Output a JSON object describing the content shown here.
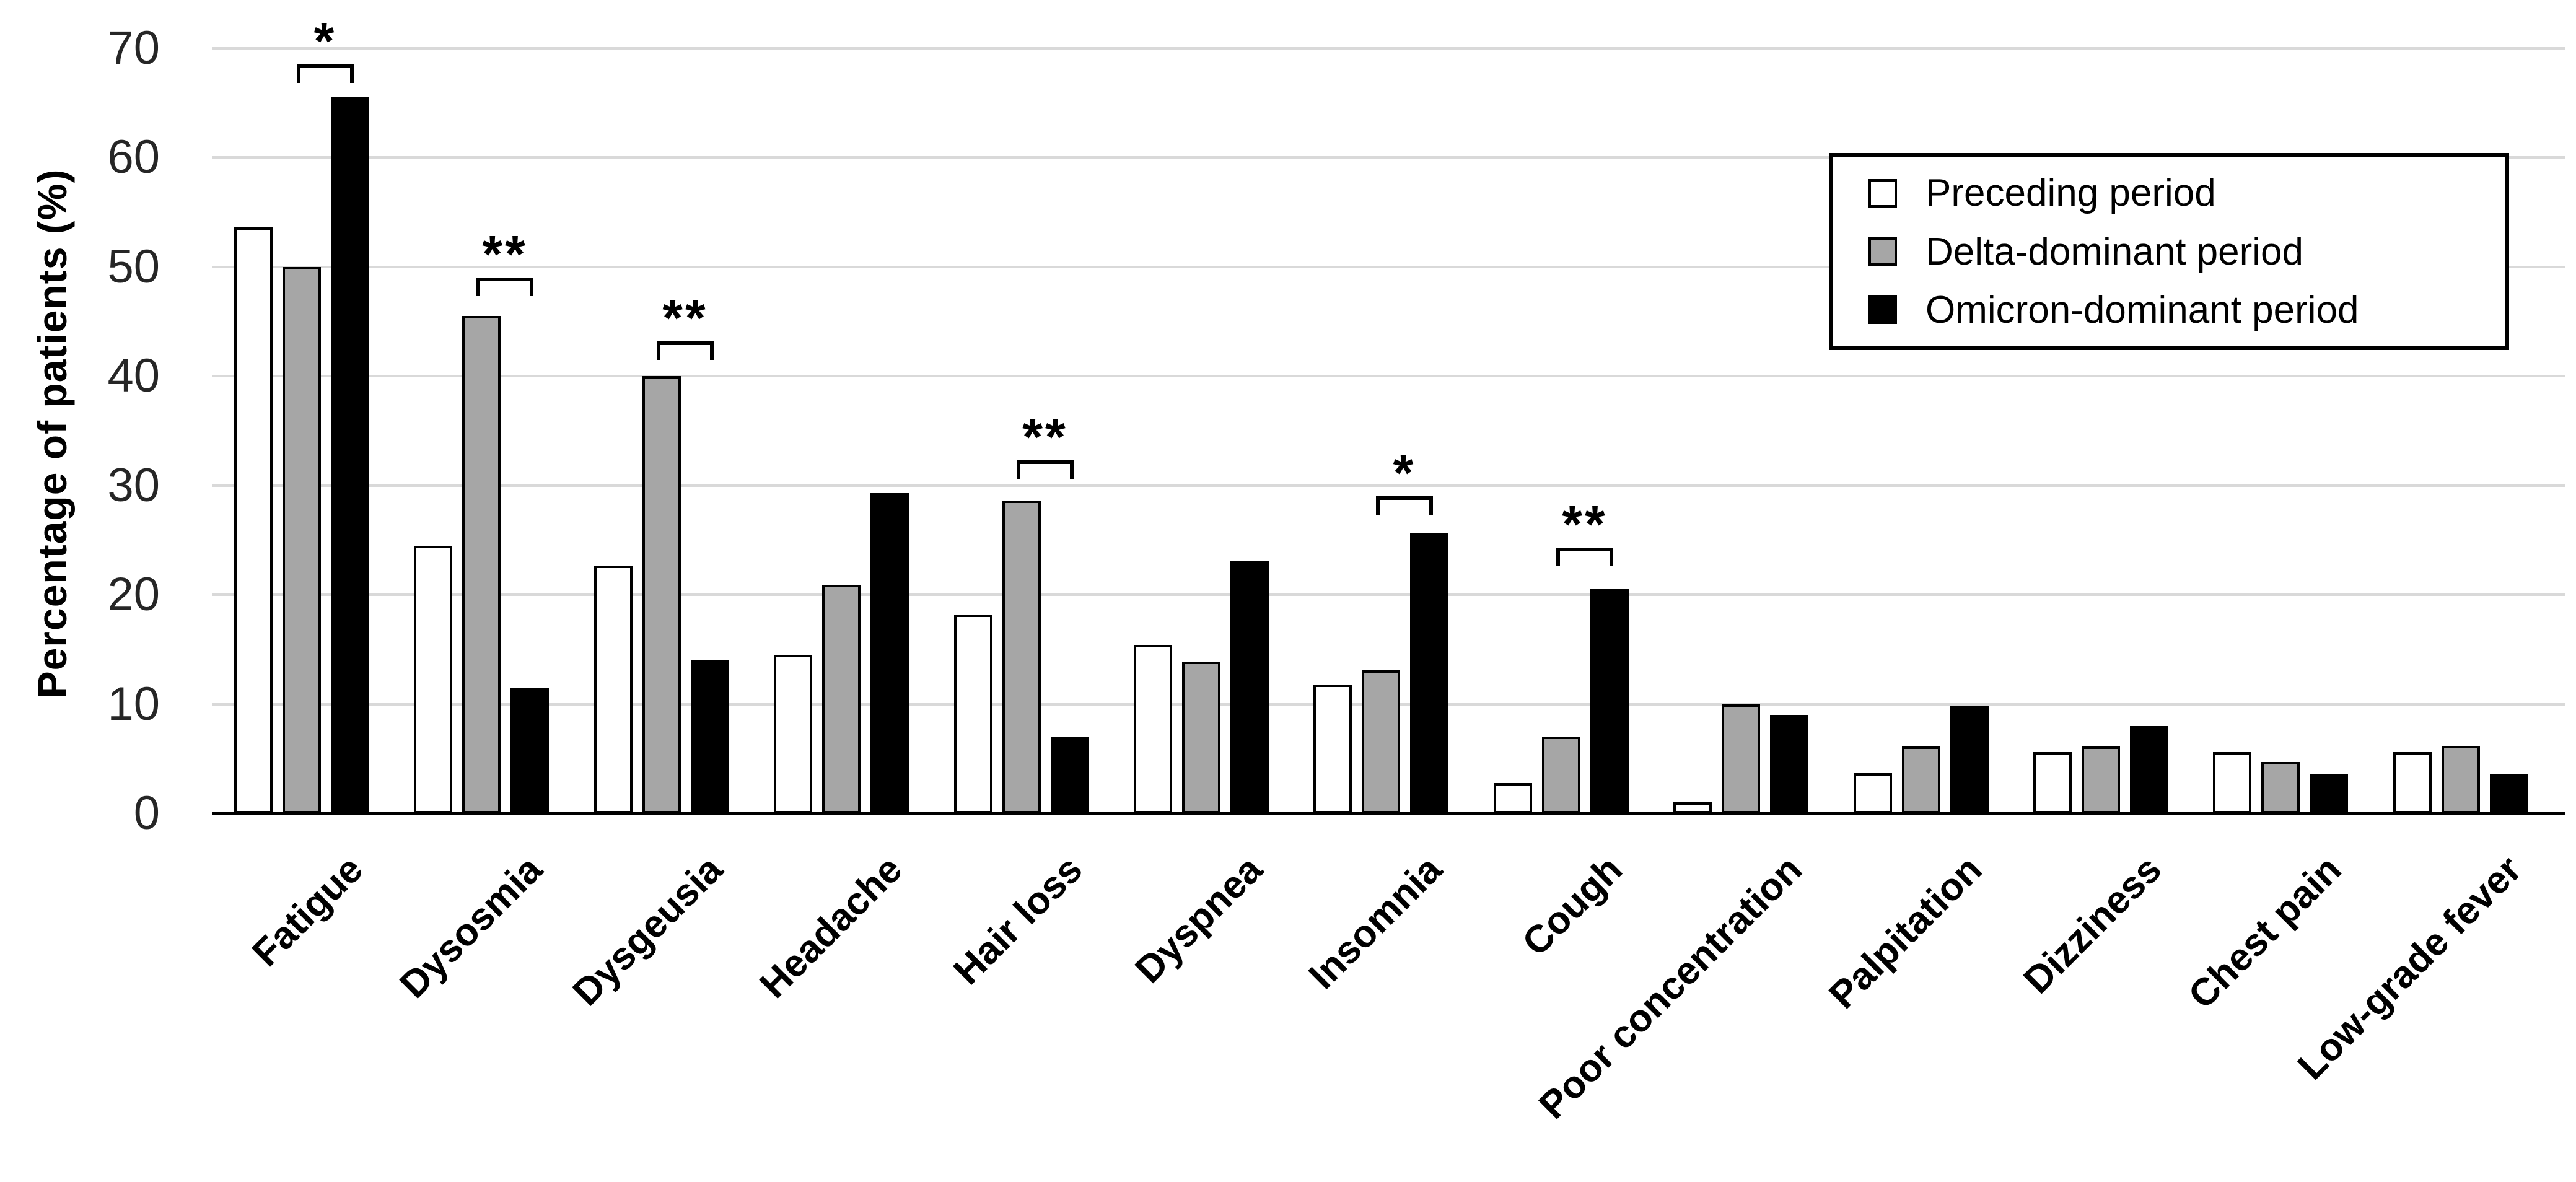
{
  "figure": {
    "y_axis_title": "Percentage of patients (%)"
  },
  "colors": {
    "preceding_fill": "#ffffff",
    "delta_fill": "#a6a6a6",
    "omicron_fill": "#000000",
    "bar_border": "#000000",
    "gridline": "#d9d9d9",
    "axis": "#000000",
    "tick_text": "#262626"
  },
  "chart_data": {
    "type": "bar",
    "title": "",
    "xlabel": "",
    "ylabel": "Percentage of patients (%)",
    "ylim": [
      0,
      70
    ],
    "yticks": [
      0,
      10,
      20,
      30,
      40,
      50,
      60,
      70
    ],
    "grid": "horizontal light gray lines at every 10",
    "legend_position": "boxed, top-right inside plot",
    "categories": [
      "Fatigue",
      "Dysosmia",
      "Dysgeusia",
      "Headache",
      "Hair loss",
      "Dyspnea",
      "Insomnia",
      "Cough",
      "Poor concentration",
      "Palpitation",
      "Dizziness",
      "Chest pain",
      "Low-grade fever"
    ],
    "series": [
      {
        "name": "Preceding period",
        "fill": "#ffffff",
        "values": [
          53.6,
          24.5,
          22.7,
          14.5,
          18.2,
          15.4,
          11.8,
          2.8,
          1.0,
          3.7,
          5.6,
          5.6,
          5.6
        ]
      },
      {
        "name": "Delta-dominant period",
        "fill": "#a6a6a6",
        "values": [
          50.0,
          45.5,
          40.0,
          20.9,
          28.6,
          13.9,
          13.1,
          7.0,
          10.0,
          6.1,
          6.1,
          4.7,
          6.2
        ]
      },
      {
        "name": "Omicron-dominant period",
        "fill": "#000000",
        "values": [
          65.5,
          11.5,
          14.0,
          29.3,
          7.0,
          23.1,
          25.7,
          20.5,
          9.0,
          9.8,
          8.0,
          3.6,
          3.6
        ]
      }
    ],
    "significance": [
      {
        "category": "Fatigue",
        "marker": "*",
        "between": [
          "Delta-dominant period",
          "Omicron-dominant period"
        ],
        "bracket_y": 68.5
      },
      {
        "category": "Dysosmia",
        "marker": "**",
        "between": [
          "Delta-dominant period",
          "Omicron-dominant period"
        ],
        "bracket_y": 49.0
      },
      {
        "category": "Dysgeusia",
        "marker": "**",
        "between": [
          "Delta-dominant period",
          "Omicron-dominant period"
        ],
        "bracket_y": 43.2
      },
      {
        "category": "Hair loss",
        "marker": "**",
        "between": [
          "Delta-dominant period",
          "Omicron-dominant period"
        ],
        "bracket_y": 32.3
      },
      {
        "category": "Insomnia",
        "marker": "*",
        "between": [
          "Delta-dominant period",
          "Omicron-dominant period"
        ],
        "bracket_y": 29.0
      },
      {
        "category": "Cough",
        "marker": "**",
        "between": [
          "Delta-dominant period",
          "Omicron-dominant period"
        ],
        "bracket_y": 24.3
      }
    ]
  }
}
